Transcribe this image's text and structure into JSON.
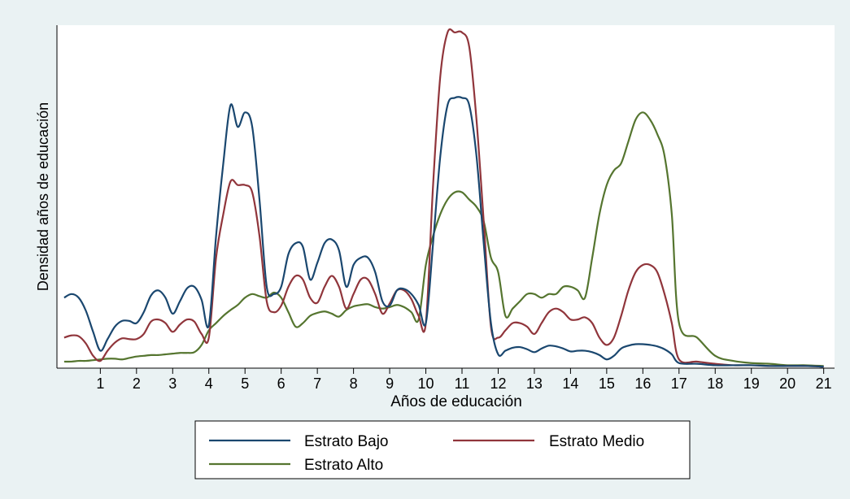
{
  "chart_data": {
    "type": "line",
    "title": "",
    "xlabel": "Años de educación",
    "ylabel": "Densidad años de educación",
    "x_ticks": [
      1,
      2,
      3,
      4,
      5,
      6,
      7,
      8,
      9,
      10,
      11,
      12,
      13,
      14,
      15,
      16,
      17,
      18,
      19,
      20,
      21
    ],
    "xlim": [
      -0.2,
      21.3
    ],
    "ylim": [
      -0.012,
      0.46
    ],
    "y_ticks_labeled": false,
    "grid": false,
    "legend_position": "bottom",
    "colors": {
      "background": "#eaf2f3",
      "plot_area": "#ffffff"
    },
    "series": [
      {
        "name": "Estrato Bajo",
        "color": "#1a476f",
        "x": [
          0,
          0.2,
          0.4,
          0.6,
          0.8,
          1,
          1.2,
          1.4,
          1.6,
          1.8,
          2,
          2.2,
          2.4,
          2.6,
          2.8,
          3,
          3.2,
          3.4,
          3.6,
          3.8,
          4,
          4.2,
          4.4,
          4.6,
          4.8,
          5,
          5.2,
          5.4,
          5.6,
          5.8,
          6,
          6.2,
          6.4,
          6.6,
          6.8,
          7,
          7.2,
          7.4,
          7.6,
          7.8,
          8,
          8.2,
          8.4,
          8.6,
          8.8,
          9,
          9.2,
          9.4,
          9.6,
          9.8,
          10,
          10.2,
          10.4,
          10.6,
          10.8,
          11,
          11.2,
          11.4,
          11.6,
          11.8,
          12,
          12.2,
          12.4,
          12.6,
          12.8,
          13,
          13.2,
          13.4,
          13.6,
          13.8,
          14,
          14.2,
          14.4,
          14.6,
          14.8,
          15,
          15.2,
          15.4,
          15.6,
          15.8,
          16,
          16.2,
          16.4,
          16.6,
          16.8,
          17,
          17.5,
          18,
          18.5,
          19,
          19.5,
          20,
          20.5,
          21
        ],
        "values": [
          0.085,
          0.09,
          0.085,
          0.067,
          0.038,
          0.012,
          0.028,
          0.045,
          0.053,
          0.053,
          0.05,
          0.065,
          0.088,
          0.095,
          0.085,
          0.063,
          0.08,
          0.098,
          0.1,
          0.082,
          0.047,
          0.17,
          0.27,
          0.35,
          0.32,
          0.34,
          0.32,
          0.22,
          0.1,
          0.09,
          0.1,
          0.145,
          0.16,
          0.155,
          0.11,
          0.133,
          0.16,
          0.165,
          0.15,
          0.1,
          0.13,
          0.14,
          0.14,
          0.12,
          0.08,
          0.074,
          0.095,
          0.097,
          0.09,
          0.075,
          0.05,
          0.16,
          0.28,
          0.35,
          0.36,
          0.36,
          0.35,
          0.28,
          0.16,
          0.05,
          0.007,
          0.012,
          0.016,
          0.017,
          0.014,
          0.01,
          0.015,
          0.019,
          0.018,
          0.015,
          0.011,
          0.012,
          0.012,
          0.01,
          0.006,
          0.0,
          0.005,
          0.015,
          0.019,
          0.021,
          0.021,
          0.02,
          0.018,
          0.014,
          0.007,
          -0.005,
          -0.006,
          -0.008,
          -0.008,
          -0.008,
          -0.009,
          -0.009,
          -0.009,
          -0.01
        ]
      },
      {
        "name": "Estrato Medio",
        "color": "#90353b",
        "x": [
          0,
          0.2,
          0.4,
          0.6,
          0.8,
          1,
          1.2,
          1.4,
          1.6,
          1.8,
          2,
          2.2,
          2.4,
          2.6,
          2.8,
          3,
          3.2,
          3.4,
          3.6,
          3.8,
          4,
          4.2,
          4.4,
          4.6,
          4.8,
          5,
          5.2,
          5.4,
          5.6,
          5.8,
          6,
          6.2,
          6.4,
          6.6,
          6.8,
          7,
          7.2,
          7.4,
          7.6,
          7.8,
          8,
          8.2,
          8.4,
          8.6,
          8.8,
          9,
          9.2,
          9.4,
          9.6,
          9.8,
          10,
          10.2,
          10.4,
          10.6,
          10.8,
          11,
          11.2,
          11.4,
          11.6,
          11.8,
          12,
          12.2,
          12.4,
          12.6,
          12.8,
          13,
          13.2,
          13.4,
          13.6,
          13.8,
          14,
          14.2,
          14.4,
          14.6,
          14.8,
          15,
          15.2,
          15.4,
          15.6,
          15.8,
          16,
          16.2,
          16.4,
          16.6,
          16.8,
          17,
          17.5,
          18,
          18.5,
          19,
          19.5,
          20,
          20.5,
          21
        ],
        "values": [
          0.03,
          0.033,
          0.032,
          0.022,
          0.005,
          -0.002,
          0.012,
          0.023,
          0.029,
          0.028,
          0.028,
          0.035,
          0.052,
          0.055,
          0.05,
          0.038,
          0.048,
          0.055,
          0.052,
          0.035,
          0.03,
          0.14,
          0.2,
          0.245,
          0.24,
          0.24,
          0.23,
          0.17,
          0.08,
          0.065,
          0.074,
          0.1,
          0.115,
          0.11,
          0.085,
          0.078,
          0.1,
          0.115,
          0.1,
          0.07,
          0.09,
          0.11,
          0.11,
          0.09,
          0.063,
          0.077,
          0.095,
          0.095,
          0.083,
          0.06,
          0.05,
          0.24,
          0.39,
          0.45,
          0.45,
          0.45,
          0.43,
          0.33,
          0.19,
          0.045,
          0.03,
          0.04,
          0.05,
          0.05,
          0.045,
          0.035,
          0.05,
          0.065,
          0.07,
          0.065,
          0.055,
          0.055,
          0.058,
          0.05,
          0.03,
          0.02,
          0.03,
          0.06,
          0.095,
          0.12,
          0.13,
          0.13,
          0.12,
          0.09,
          0.05,
          0.0,
          -0.003,
          -0.006,
          -0.008,
          -0.008,
          -0.009,
          -0.009,
          -0.009,
          -0.01
        ]
      },
      {
        "name": "Estrato Alto",
        "color": "#55752f",
        "x": [
          0,
          0.2,
          0.4,
          0.6,
          0.8,
          1,
          1.2,
          1.4,
          1.6,
          1.8,
          2,
          2.2,
          2.4,
          2.6,
          2.8,
          3,
          3.2,
          3.4,
          3.6,
          3.8,
          4,
          4.2,
          4.4,
          4.6,
          4.8,
          5,
          5.2,
          5.4,
          5.6,
          5.8,
          6,
          6.2,
          6.4,
          6.6,
          6.8,
          7,
          7.2,
          7.4,
          7.6,
          7.8,
          8,
          8.2,
          8.4,
          8.6,
          8.8,
          9,
          9.2,
          9.4,
          9.6,
          9.8,
          10,
          10.2,
          10.4,
          10.6,
          10.8,
          11,
          11.2,
          11.4,
          11.6,
          11.8,
          12,
          12.2,
          12.4,
          12.6,
          12.8,
          13,
          13.2,
          13.4,
          13.6,
          13.8,
          14,
          14.2,
          14.4,
          14.6,
          14.8,
          15,
          15.2,
          15.4,
          15.6,
          15.8,
          16,
          16.2,
          16.4,
          16.6,
          16.8,
          17,
          17.5,
          18,
          18.5,
          19,
          19.5,
          20,
          20.5,
          21
        ],
        "values": [
          -0.003,
          -0.003,
          -0.002,
          -0.002,
          -0.001,
          0.0,
          0.001,
          0.001,
          0.0,
          0.002,
          0.004,
          0.005,
          0.006,
          0.006,
          0.007,
          0.008,
          0.009,
          0.009,
          0.01,
          0.02,
          0.04,
          0.05,
          0.06,
          0.068,
          0.075,
          0.085,
          0.09,
          0.087,
          0.085,
          0.092,
          0.085,
          0.065,
          0.045,
          0.05,
          0.06,
          0.064,
          0.066,
          0.063,
          0.059,
          0.068,
          0.073,
          0.075,
          0.076,
          0.072,
          0.07,
          0.072,
          0.075,
          0.072,
          0.065,
          0.055,
          0.13,
          0.17,
          0.2,
          0.22,
          0.23,
          0.23,
          0.22,
          0.21,
          0.19,
          0.14,
          0.12,
          0.06,
          0.07,
          0.08,
          0.09,
          0.09,
          0.085,
          0.09,
          0.09,
          0.1,
          0.1,
          0.095,
          0.085,
          0.14,
          0.2,
          0.24,
          0.26,
          0.27,
          0.3,
          0.33,
          0.34,
          0.33,
          0.31,
          0.28,
          0.2,
          0.05,
          0.03,
          0.005,
          -0.002,
          -0.005,
          -0.006,
          -0.008,
          -0.008,
          -0.009
        ]
      }
    ]
  }
}
